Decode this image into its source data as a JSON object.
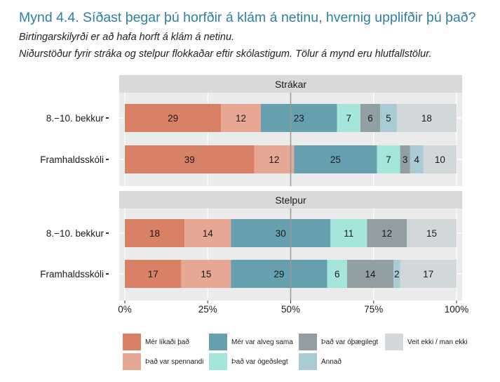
{
  "figure": {
    "title": "Mynd 4.4. Síðast þegar þú horfðir á klám á netinu, hvernig upplifðir þú það?",
    "subtitle_1": "Birtingarskilyrði er að hafa horft á klám á netinu.",
    "subtitle_2": "Niðurstöður fyrir stráka og stelpur flokkaðar eftir skólastigum. Tölur á mynd eru hlutfallstölur."
  },
  "chart_data": {
    "type": "bar",
    "orientation": "horizontal",
    "stacked": true,
    "xlim": [
      0,
      100
    ],
    "x_ticks": [
      "0%",
      "25%",
      "50%",
      "75%",
      "100%"
    ],
    "reference_line": 50,
    "grid": true,
    "legend_position": "bottom",
    "categories_legend": [
      "Mér líkaði það",
      "Það var spennandi",
      "Mér var alveg sama",
      "Það var ógeðslegt",
      "Það var óþægilegt",
      "Annað",
      "Veit ekki / man ekki"
    ],
    "colors": [
      "#d98166",
      "#e7a795",
      "#66a0ae",
      "#a4e6db",
      "#919ea3",
      "#a9cbd4",
      "#d2d7d9"
    ],
    "panels": [
      {
        "title": "Strákar",
        "rows": [
          {
            "label": "8.−10. bekkur",
            "values": [
              29,
              12,
              23,
              7,
              6,
              5,
              18
            ]
          },
          {
            "label": "Framhaldsskóli",
            "values": [
              39,
              12,
              25,
              7,
              3,
              4,
              10
            ]
          }
        ]
      },
      {
        "title": "Stelpur",
        "rows": [
          {
            "label": "8.−10. bekkur",
            "values": [
              18,
              14,
              30,
              11,
              12,
              0,
              15
            ]
          },
          {
            "label": "Framhaldsskóli",
            "values": [
              17,
              15,
              29,
              6,
              14,
              2,
              17
            ]
          }
        ]
      }
    ]
  }
}
